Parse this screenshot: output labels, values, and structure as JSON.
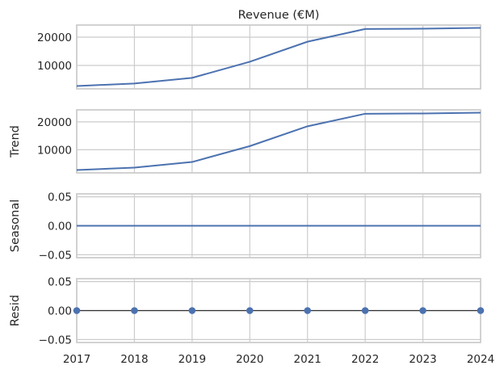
{
  "chart_data": {
    "type": "line",
    "title": "Revenue (€M)",
    "x": [
      2017,
      2018,
      2019,
      2020,
      2021,
      2022,
      2023,
      2024
    ],
    "xlim": [
      2017,
      2024
    ],
    "xticks": [
      "2017",
      "2018",
      "2019",
      "2020",
      "2021",
      "2022",
      "2023",
      "2024"
    ],
    "grid": true,
    "colors": {
      "line": "#4c72b0",
      "marker": "#4c72b0",
      "zero_line": "#2f2f2f",
      "grid": "#cccccc"
    },
    "panels": [
      {
        "key": "observed",
        "ylabel": "",
        "values": [
          2700,
          3600,
          5600,
          11300,
          18400,
          22900,
          23000,
          23300
        ],
        "ylim": [
          1700,
          24300
        ],
        "yticks": [
          "10000",
          "20000"
        ],
        "ytick_values": [
          10000,
          20000
        ],
        "style": "line"
      },
      {
        "key": "trend",
        "ylabel": "Trend",
        "values": [
          2700,
          3600,
          5600,
          11300,
          18400,
          22900,
          23000,
          23300
        ],
        "ylim": [
          1700,
          24300
        ],
        "yticks": [
          "10000",
          "20000"
        ],
        "ytick_values": [
          10000,
          20000
        ],
        "style": "line"
      },
      {
        "key": "seasonal",
        "ylabel": "Seasonal",
        "values": [
          0,
          0,
          0,
          0,
          0,
          0,
          0,
          0
        ],
        "ylim": [
          -0.055,
          0.055
        ],
        "yticks": [
          "−0.05",
          "0.00",
          "0.05"
        ],
        "ytick_values": [
          -0.05,
          0,
          0.05
        ],
        "style": "line"
      },
      {
        "key": "resid",
        "ylabel": "Resid",
        "values": [
          0,
          0,
          0,
          0,
          0,
          0,
          0,
          0
        ],
        "ylim": [
          -0.055,
          0.055
        ],
        "yticks": [
          "−0.05",
          "0.00",
          "0.05"
        ],
        "ytick_values": [
          -0.05,
          0,
          0.05
        ],
        "style": "markers"
      }
    ]
  }
}
